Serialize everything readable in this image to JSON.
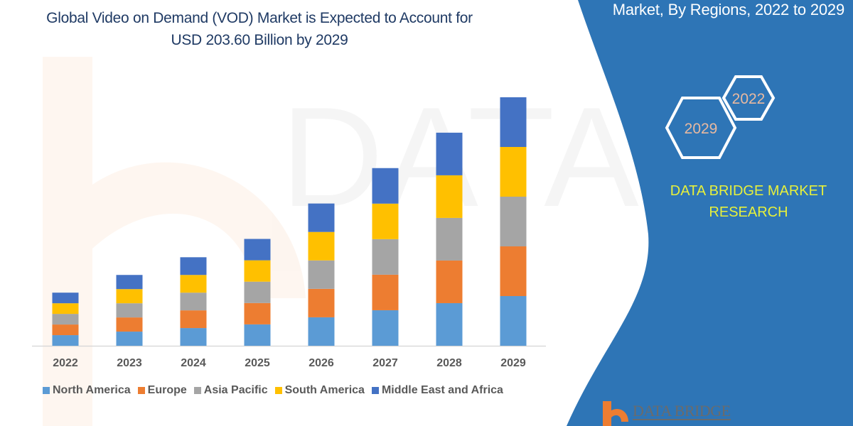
{
  "title_line1": "Global Video on Demand (VOD) Market is Expected to Account for",
  "title_line2": "USD 203.60 Billion by 2029",
  "panel": {
    "heading": "Market, By Regions, 2022 to 2029",
    "hex_start": "2022",
    "hex_end": "2029",
    "company_line1": "DATA BRIDGE MARKET",
    "company_line2": "RESEARCH",
    "logo_text": "DATA BRIDGE",
    "panel_color": "#2E75B6",
    "company_color": "#E6F03C"
  },
  "chart_data": {
    "type": "bar",
    "stacked": true,
    "categories": [
      "2022",
      "2023",
      "2024",
      "2025",
      "2026",
      "2027",
      "2028",
      "2029"
    ],
    "series": [
      {
        "name": "North America",
        "color": "#5B9BD5",
        "values": [
          8.7,
          11.6,
          14.5,
          17.5,
          23.3,
          29.1,
          34.9,
          40.7
        ]
      },
      {
        "name": "Europe",
        "color": "#ED7D31",
        "values": [
          8.7,
          11.6,
          14.5,
          17.5,
          23.3,
          29.1,
          34.9,
          40.7
        ]
      },
      {
        "name": "Asia Pacific",
        "color": "#A5A5A5",
        "values": [
          8.7,
          11.6,
          14.5,
          17.5,
          23.3,
          29.1,
          34.9,
          40.7
        ]
      },
      {
        "name": "South America",
        "color": "#FFC000",
        "values": [
          8.7,
          11.6,
          14.5,
          17.5,
          23.3,
          29.1,
          34.9,
          40.7
        ]
      },
      {
        "name": "Middle East and Africa",
        "color": "#4472C4",
        "values": [
          8.7,
          11.6,
          14.5,
          17.5,
          23.3,
          29.1,
          34.9,
          40.7
        ]
      }
    ],
    "xlabel": "",
    "ylabel": "",
    "grid": false,
    "legend": "bottom"
  }
}
